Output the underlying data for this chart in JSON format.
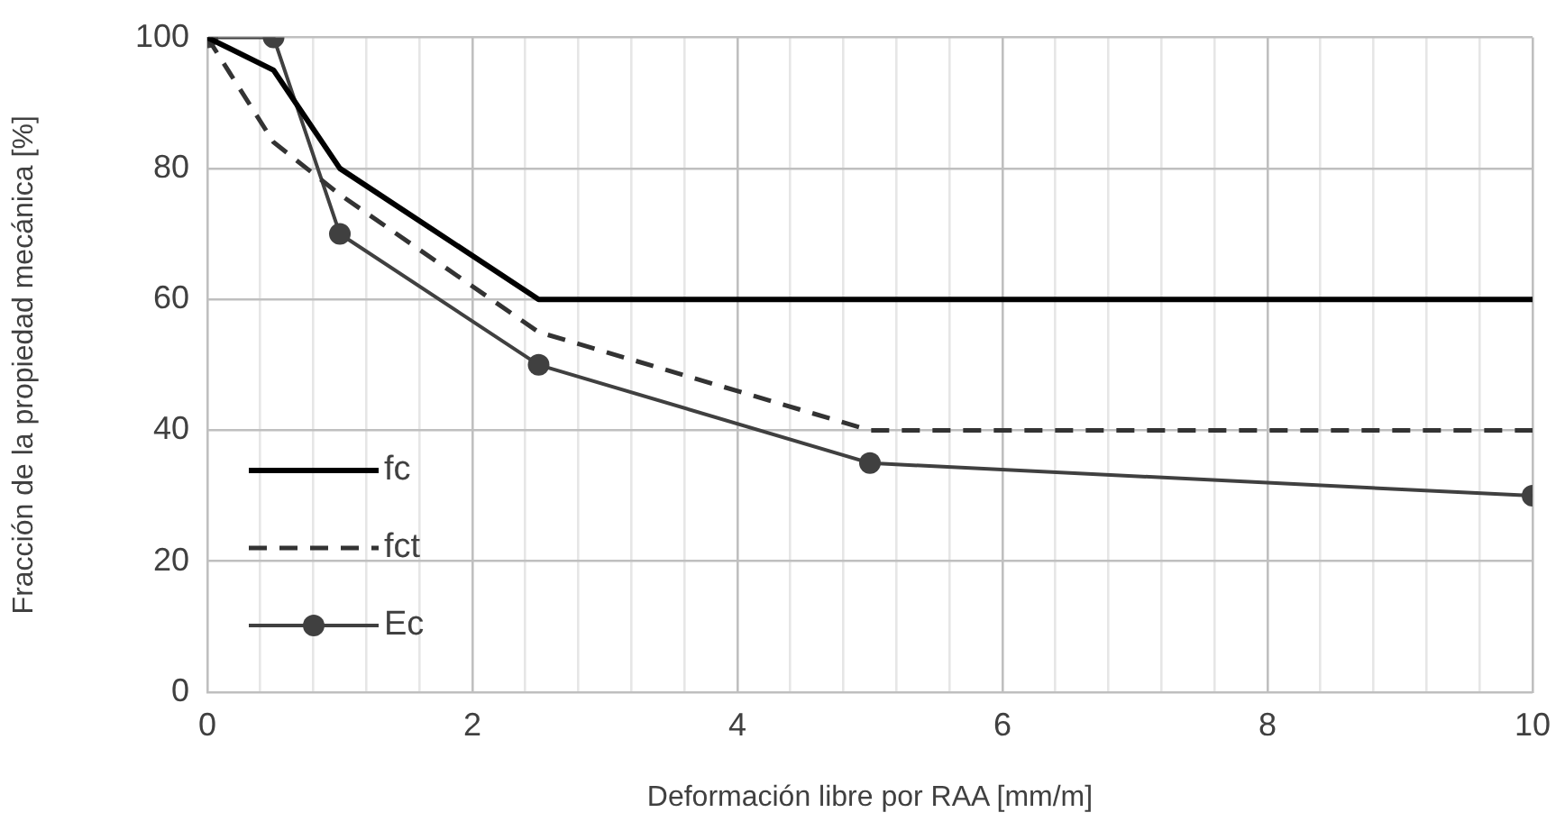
{
  "chart_data": {
    "type": "line",
    "xlabel": "Deformación libre por RAA [mm/m]",
    "ylabel": "Fracción de la propiedad mecánica [%]",
    "xlim": [
      0,
      10
    ],
    "xticks": [
      0,
      {
        "value": 0.4,
        "label": null
      },
      {
        "value": 0.8,
        "label": null
      },
      {
        "value": 1.2,
        "label": null
      },
      {
        "value": 1.6,
        "label": null
      },
      2,
      {
        "value": 2.4,
        "label": null
      },
      {
        "value": 2.8,
        "label": null
      },
      {
        "value": 3.2,
        "label": null
      },
      {
        "value": 3.6,
        "label": null
      },
      4,
      {
        "value": 4.4,
        "label": null
      },
      {
        "value": 4.8,
        "label": null
      },
      {
        "value": 5.2,
        "label": null
      },
      {
        "value": 5.6,
        "label": null
      },
      6,
      {
        "value": 6.4,
        "label": null
      },
      {
        "value": 6.8,
        "label": null
      },
      {
        "value": 7.2,
        "label": null
      },
      {
        "value": 7.6,
        "label": null
      },
      8,
      {
        "value": 8.4,
        "label": null
      },
      {
        "value": 8.8,
        "label": null
      },
      {
        "value": 9.2,
        "label": null
      },
      {
        "value": 9.6,
        "label": null
      },
      10
    ],
    "ylim": [
      0,
      100
    ],
    "yticks": [
      0,
      20,
      40,
      60,
      80,
      100
    ],
    "grid": true,
    "legend": "bottom left",
    "series": [
      {
        "name": "fc",
        "color": "#000000",
        "line_style": "solid",
        "marker": "none",
        "x": [
          0,
          0.5,
          1,
          2.5,
          10
        ],
        "values": [
          100,
          95,
          80,
          60,
          60
        ]
      },
      {
        "name": "fct",
        "color": "#333333",
        "line_style": "dashed",
        "marker": "none",
        "x": [
          0,
          0.5,
          1,
          2.5,
          5,
          10
        ],
        "values": [
          100,
          84,
          76,
          55,
          40,
          40
        ]
      },
      {
        "name": "Ec",
        "color": "#404040",
        "line_style": "solid",
        "marker": "circle",
        "x": [
          0,
          0.5,
          1,
          2.5,
          5,
          10
        ],
        "values": [
          100,
          100,
          70,
          50,
          35,
          30
        ]
      }
    ]
  }
}
